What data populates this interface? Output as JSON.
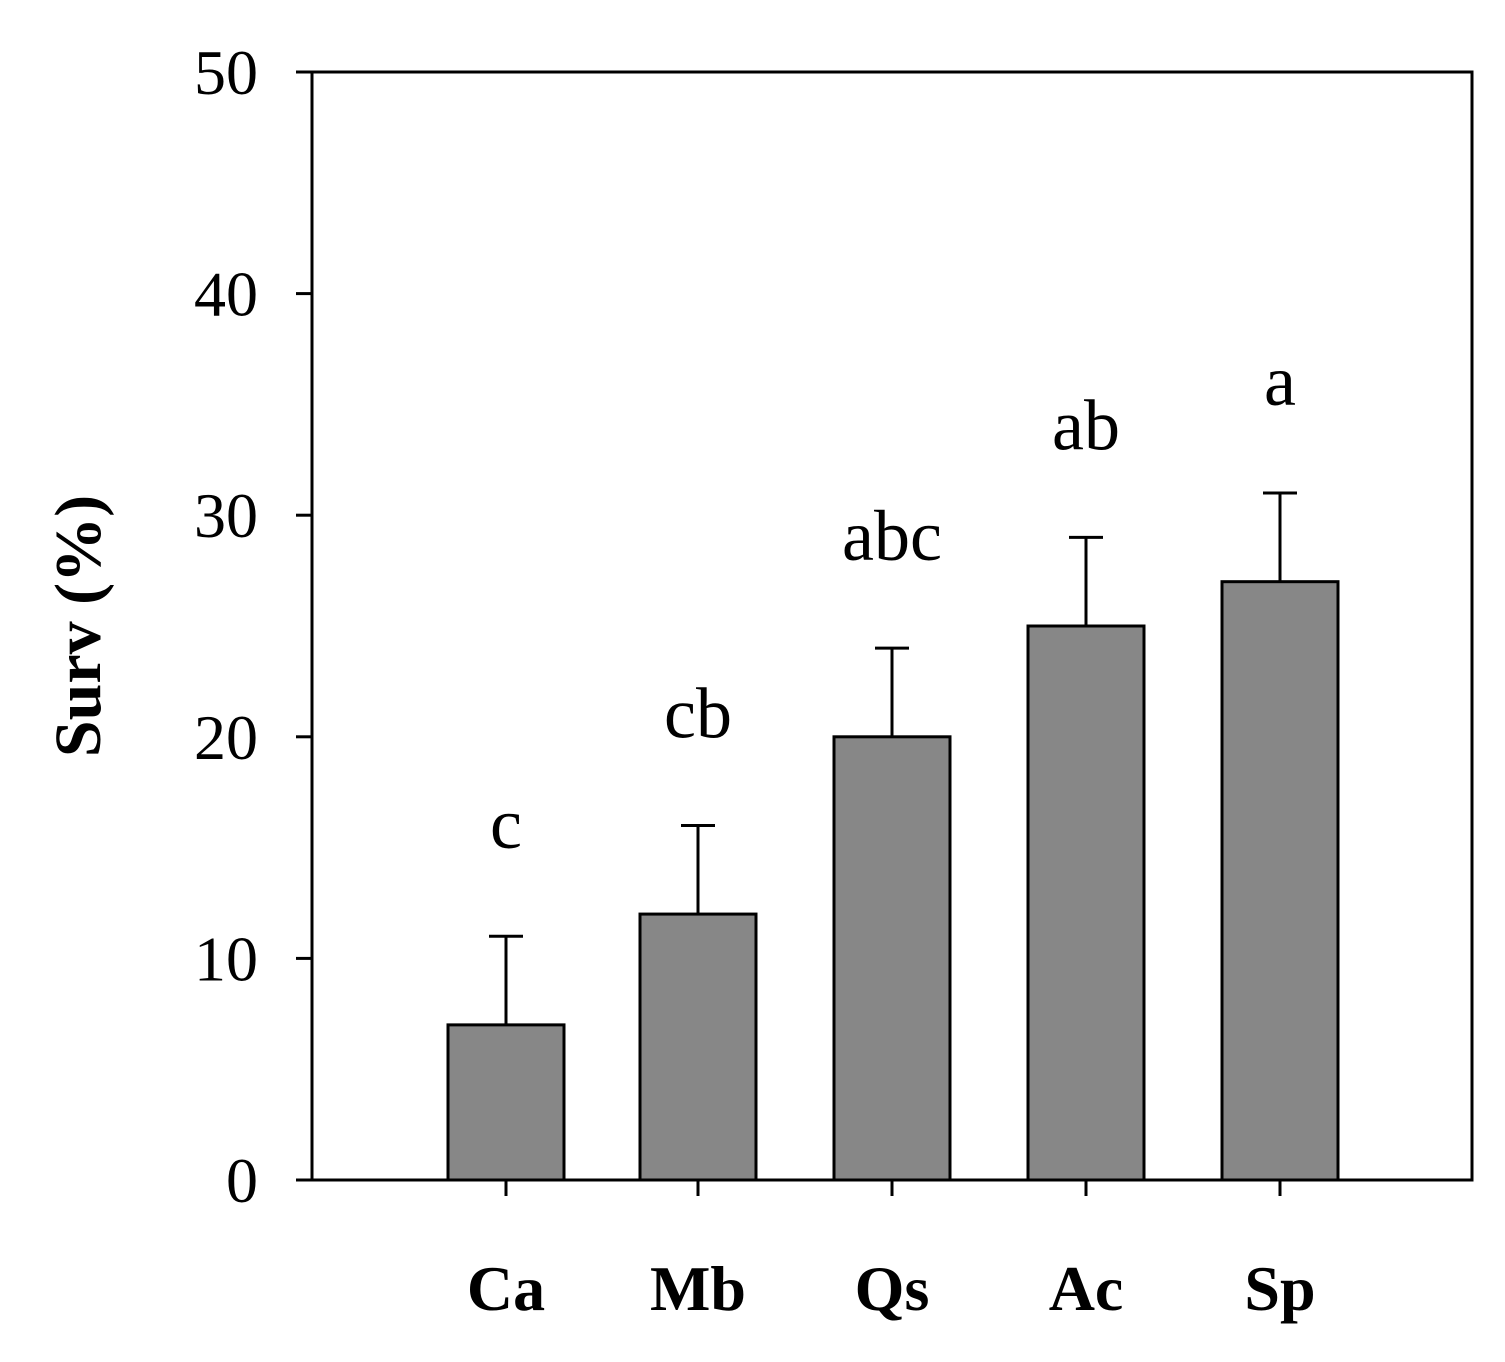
{
  "chart_data": {
    "type": "bar",
    "categories": [
      "Ca",
      "Mb",
      "Qs",
      "Ac",
      "Sp"
    ],
    "values": [
      7,
      12,
      20,
      25,
      27
    ],
    "errors": [
      4,
      4,
      4,
      4,
      4
    ],
    "significance_labels": [
      "c",
      "cb",
      "abc",
      "ab",
      "a"
    ],
    "title": "",
    "xlabel": "",
    "ylabel": "Surv (%)",
    "ylim": [
      0,
      50
    ],
    "yticks": [
      0,
      10,
      20,
      30,
      40,
      50
    ],
    "grid": false,
    "legend": "none",
    "colors": {
      "bar": "#878787",
      "stroke": "#000000"
    }
  }
}
